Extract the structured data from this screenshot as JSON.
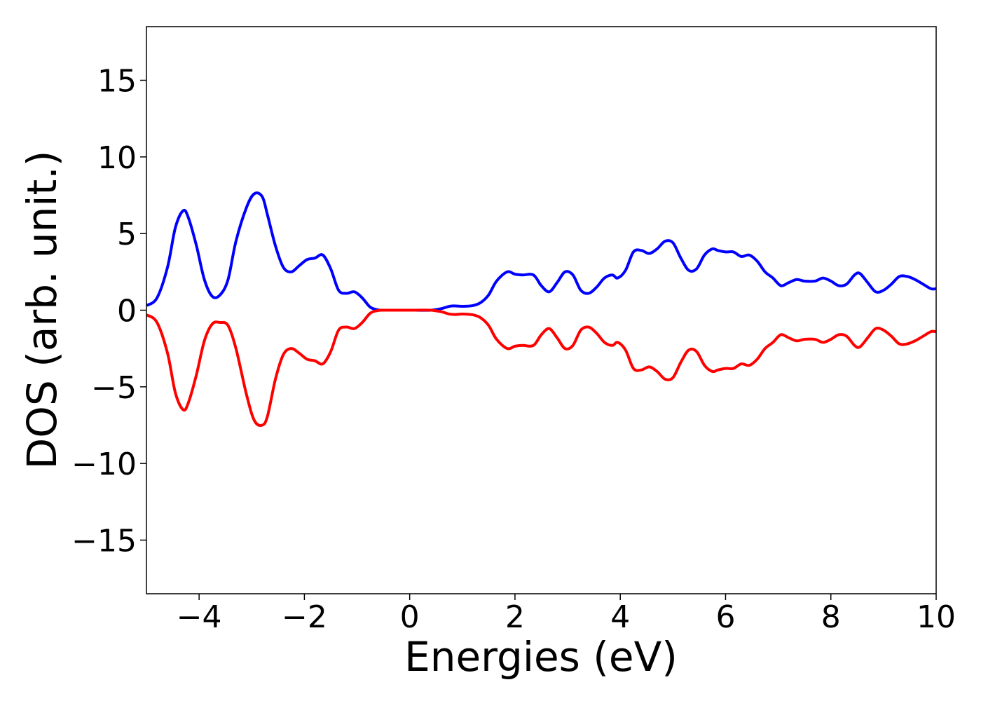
{
  "chart_data": {
    "type": "line",
    "xlabel": "Energies (eV)",
    "ylabel": "DOS (arb. unit.)",
    "xlim": [
      -5,
      10
    ],
    "ylim": [
      -18.5,
      18.5
    ],
    "xticks": [
      -4,
      -2,
      0,
      2,
      4,
      6,
      8,
      10
    ],
    "xtick_labels": [
      "−4",
      "−2",
      "0",
      "2",
      "4",
      "6",
      "8",
      "10"
    ],
    "yticks": [
      -15,
      -10,
      -5,
      0,
      5,
      10,
      15
    ],
    "ytick_labels": [
      "−15",
      "−10",
      "−5",
      "0",
      "5",
      "10",
      "15"
    ],
    "grid": false,
    "colors": {
      "spin_up": "#0000ff",
      "spin_down": "#ff0000"
    },
    "series": [
      {
        "color": "#0000ff",
        "x": [
          -5.0,
          -4.8,
          -4.6,
          -4.45,
          -4.3,
          -4.2,
          -4.05,
          -3.9,
          -3.75,
          -3.6,
          -3.45,
          -3.3,
          -3.1,
          -2.95,
          -2.8,
          -2.7,
          -2.55,
          -2.4,
          -2.25,
          -2.1,
          -1.95,
          -1.8,
          -1.65,
          -1.5,
          -1.35,
          -1.2,
          -1.05,
          -0.9,
          -0.75,
          -0.6,
          -0.45,
          -0.3,
          -0.1,
          0.1,
          0.4,
          0.6,
          0.75,
          0.85,
          1.0,
          1.2,
          1.35,
          1.5,
          1.65,
          1.85,
          2.0,
          2.15,
          2.35,
          2.5,
          2.65,
          2.8,
          2.95,
          3.1,
          3.25,
          3.4,
          3.55,
          3.7,
          3.85,
          3.95,
          4.1,
          4.25,
          4.4,
          4.55,
          4.7,
          4.85,
          5.0,
          5.15,
          5.3,
          5.45,
          5.6,
          5.75,
          5.85,
          6.0,
          6.15,
          6.3,
          6.45,
          6.6,
          6.75,
          6.9,
          7.05,
          7.2,
          7.35,
          7.5,
          7.7,
          7.85,
          8.0,
          8.15,
          8.3,
          8.45,
          8.55,
          8.7,
          8.85,
          9.0,
          9.15,
          9.3,
          9.45,
          9.6,
          9.75,
          9.9,
          10.0
        ],
        "y": [
          0.3,
          0.8,
          2.8,
          5.4,
          6.5,
          6.0,
          4.2,
          2.0,
          0.9,
          1.0,
          2.0,
          4.5,
          6.7,
          7.6,
          7.4,
          6.2,
          4.2,
          2.8,
          2.5,
          2.9,
          3.3,
          3.4,
          3.6,
          2.7,
          1.3,
          1.1,
          1.2,
          0.8,
          0.2,
          0.02,
          0.0,
          0.0,
          0.0,
          0.0,
          0.0,
          0.1,
          0.25,
          0.28,
          0.25,
          0.3,
          0.5,
          1.0,
          1.9,
          2.5,
          2.35,
          2.3,
          2.3,
          1.6,
          1.2,
          1.8,
          2.5,
          2.3,
          1.3,
          1.1,
          1.5,
          2.1,
          2.3,
          2.1,
          2.6,
          3.8,
          3.9,
          3.7,
          4.0,
          4.5,
          4.4,
          3.4,
          2.6,
          2.7,
          3.6,
          4.0,
          3.9,
          3.8,
          3.8,
          3.5,
          3.6,
          3.2,
          2.5,
          2.1,
          1.6,
          1.8,
          2.0,
          1.9,
          1.9,
          2.1,
          1.9,
          1.6,
          1.7,
          2.3,
          2.4,
          1.8,
          1.2,
          1.3,
          1.7,
          2.2,
          2.2,
          2.0,
          1.7,
          1.4,
          1.4
        ]
      },
      {
        "color": "#ff0000",
        "x": [
          -5.0,
          -4.8,
          -4.6,
          -4.45,
          -4.3,
          -4.2,
          -4.05,
          -3.9,
          -3.75,
          -3.6,
          -3.45,
          -3.3,
          -3.1,
          -2.95,
          -2.8,
          -2.7,
          -2.55,
          -2.4,
          -2.25,
          -2.1,
          -1.95,
          -1.8,
          -1.65,
          -1.5,
          -1.35,
          -1.2,
          -1.05,
          -0.9,
          -0.75,
          -0.6,
          -0.45,
          -0.3,
          -0.1,
          0.1,
          0.4,
          0.6,
          0.75,
          0.85,
          1.0,
          1.2,
          1.35,
          1.5,
          1.65,
          1.85,
          2.0,
          2.15,
          2.35,
          2.5,
          2.65,
          2.8,
          2.95,
          3.1,
          3.25,
          3.4,
          3.55,
          3.7,
          3.85,
          3.95,
          4.1,
          4.25,
          4.4,
          4.55,
          4.7,
          4.85,
          5.0,
          5.15,
          5.3,
          5.45,
          5.6,
          5.75,
          5.85,
          6.0,
          6.15,
          6.3,
          6.45,
          6.6,
          6.75,
          6.9,
          7.05,
          7.2,
          7.35,
          7.5,
          7.7,
          7.85,
          8.0,
          8.15,
          8.3,
          8.45,
          8.55,
          8.7,
          8.85,
          9.0,
          9.15,
          9.3,
          9.45,
          9.6,
          9.75,
          9.9,
          10.0
        ],
        "y": [
          -0.3,
          -0.8,
          -2.8,
          -5.4,
          -6.5,
          -6.0,
          -4.2,
          -2.0,
          -0.9,
          -0.8,
          -1.0,
          -2.5,
          -5.5,
          -7.2,
          -7.5,
          -6.9,
          -4.5,
          -2.9,
          -2.5,
          -2.8,
          -3.2,
          -3.3,
          -3.5,
          -2.7,
          -1.3,
          -1.1,
          -1.2,
          -0.8,
          -0.2,
          -0.02,
          0.0,
          0.0,
          0.0,
          0.0,
          0.0,
          -0.1,
          -0.25,
          -0.28,
          -0.25,
          -0.3,
          -0.5,
          -1.0,
          -1.9,
          -2.5,
          -2.35,
          -2.3,
          -2.3,
          -1.6,
          -1.2,
          -1.8,
          -2.5,
          -2.3,
          -1.3,
          -1.1,
          -1.5,
          -2.1,
          -2.3,
          -2.1,
          -2.6,
          -3.8,
          -3.9,
          -3.7,
          -4.0,
          -4.5,
          -4.4,
          -3.4,
          -2.6,
          -2.7,
          -3.6,
          -4.0,
          -3.9,
          -3.8,
          -3.8,
          -3.5,
          -3.6,
          -3.2,
          -2.5,
          -2.1,
          -1.6,
          -1.8,
          -2.0,
          -1.9,
          -1.9,
          -2.1,
          -1.9,
          -1.6,
          -1.7,
          -2.3,
          -2.4,
          -1.8,
          -1.2,
          -1.3,
          -1.7,
          -2.2,
          -2.2,
          -2.0,
          -1.7,
          -1.4,
          -1.4
        ]
      }
    ]
  }
}
